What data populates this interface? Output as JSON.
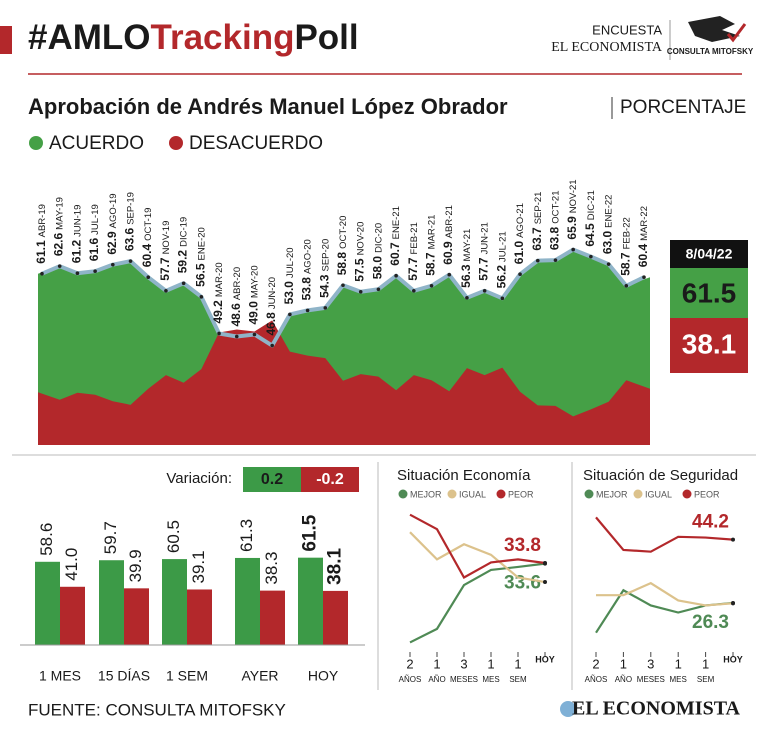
{
  "header": {
    "title_parts": [
      "#AMLO",
      "Tracking",
      "Poll"
    ],
    "brand_top": "ENCUESTA",
    "brand_bottom": "EL ECONOMISTA",
    "brand_logo": "CONSULTA MITOFSKY"
  },
  "chart_data": [
    {
      "type": "area",
      "title": "Aprobación de Andrés Manuel López Obrador",
      "unit": "PORCENTAJE",
      "categories": [
        "ABR-19",
        "MAY-19",
        "JUN-19",
        "JUL-19",
        "AGO-19",
        "SEP-19",
        "OCT-19",
        "NOV-19",
        "DIC-19",
        "ENE-20",
        "MAR-20",
        "ABR-20",
        "MAY-20",
        "JUN-20",
        "JUL-20",
        "AGO-20",
        "SEP-20",
        "OCT-20",
        "NOV-20",
        "DIC-20",
        "ENE-21",
        "FEB-21",
        "MAR-21",
        "ABR-21",
        "MAY-21",
        "JUN-21",
        "JUL-21",
        "AGO-21",
        "SEP-21",
        "OCT-21",
        "NOV-21",
        "DIC-21",
        "ENE-22",
        "FEB-22",
        "MAR-22"
      ],
      "series": [
        {
          "name": "ACUERDO",
          "color": "#45a046",
          "values": [
            61.1,
            62.6,
            61.2,
            61.6,
            62.9,
            63.6,
            60.4,
            57.7,
            59.2,
            56.5,
            49.2,
            48.6,
            49.0,
            46.8,
            53.0,
            53.8,
            54.3,
            58.8,
            57.5,
            58.0,
            60.7,
            57.7,
            58.7,
            60.9,
            56.3,
            57.7,
            56.2,
            61.0,
            63.7,
            63.8,
            65.9,
            64.5,
            63.0,
            58.7,
            60.4
          ],
          "value_labels": [
            "61.1",
            "62.6",
            "61.2",
            "61.6",
            "62.9",
            "63.6",
            "60.4",
            "57.7",
            "59.2",
            "56.5",
            "49.2",
            "48.6",
            "49.0",
            "46.8",
            "53.0",
            "53.8",
            "54.3",
            "58.8",
            "57.5",
            "58.0",
            "60.7",
            "57.7",
            "58.7",
            "60.9",
            "56.3",
            "57.7",
            "56.2",
            "61.0",
            "63.7",
            "63.8",
            "65.9",
            "64.5",
            "63.0",
            "58.7",
            "60.4"
          ]
        },
        {
          "name": "DESACUERDO",
          "color": "#b3282b",
          "values": [
            37.5,
            36.0,
            37.4,
            37.0,
            35.7,
            35.0,
            38.2,
            40.9,
            39.4,
            42.1,
            49.4,
            50.0,
            49.6,
            51.8,
            45.6,
            44.8,
            44.3,
            39.8,
            41.1,
            40.6,
            37.9,
            40.9,
            39.9,
            37.7,
            42.3,
            40.9,
            42.4,
            37.6,
            34.9,
            34.8,
            32.7,
            34.1,
            35.6,
            39.9,
            38.2
          ]
        }
      ],
      "ylim": [
        27,
        70
      ],
      "line_color": "#8fb4c8",
      "latest": {
        "label": "8/04/22",
        "values": [
          61.5,
          38.1
        ]
      }
    },
    {
      "type": "bar",
      "categories": [
        "1 MES",
        "15 DÍAS",
        "1 SEM",
        "AYER",
        "HOY"
      ],
      "series": [
        {
          "color": "#3c9a47",
          "values": [
            58.6,
            59.7,
            60.5,
            61.3,
            61.5
          ],
          "value_labels": [
            "58.6",
            "59.7",
            "60.5",
            "61.3",
            "61.5"
          ]
        },
        {
          "color": "#b3282b",
          "values": [
            41.0,
            39.9,
            39.1,
            38.3,
            38.1
          ],
          "value_labels": [
            "41.0",
            "39.9",
            "39.1",
            "38.3",
            "38.1"
          ]
        }
      ],
      "ylim": [
        0,
        100
      ],
      "variation": {
        "label": "Variación:",
        "values": [
          0.2,
          -0.2
        ]
      }
    },
    {
      "type": "line",
      "title": "Situación Economía",
      "categories": [
        "2",
        "1",
        "3",
        "1",
        "1",
        "HOY"
      ],
      "category_units": [
        "AÑOS",
        "AÑO",
        "MESES",
        "MES",
        "SEM",
        null
      ],
      "series": [
        {
          "name": "MEJOR",
          "color": "#4f8a55",
          "values": [
            7.5,
            12,
            26.5,
            31.5,
            32.5,
            33.6
          ],
          "label_last": true
        },
        {
          "name": "IGUAL",
          "color": "#dcc28c",
          "values": [
            44,
            35,
            40,
            36.5,
            29,
            27.5
          ],
          "label_last": false
        },
        {
          "name": "PEOR",
          "color": "#b3282b",
          "values": [
            49.8,
            45,
            29,
            34,
            35,
            33.8
          ],
          "label_last": true
        }
      ],
      "ylim": [
        5,
        53
      ]
    },
    {
      "type": "line",
      "title": "Situación de Seguridad",
      "categories": [
        "2",
        "1",
        "3",
        "1",
        "1",
        "HOY"
      ],
      "category_units": [
        "AÑOS",
        "AÑO",
        "MESES",
        "MES",
        "SEM",
        null
      ],
      "series": [
        {
          "name": "MEJOR",
          "color": "#4f8a55",
          "values": [
            17.9,
            29.9,
            25.6,
            23.6,
            25.6,
            26.3
          ],
          "label_last": true
        },
        {
          "name": "IGUAL",
          "color": "#dcc28c",
          "values": [
            28.5,
            28.5,
            31.9,
            27,
            25.6,
            26.2
          ],
          "label_last": false
        },
        {
          "name": "PEOR",
          "color": "#b3282b",
          "values": [
            50.5,
            41.3,
            40.8,
            45,
            44.8,
            44.2
          ],
          "label_last": true
        }
      ],
      "ylim": [
        13,
        54
      ]
    }
  ],
  "footer": {
    "source": "FUENTE: CONSULTA MITOFSKY",
    "brand": "EL ECONOMISTA"
  }
}
